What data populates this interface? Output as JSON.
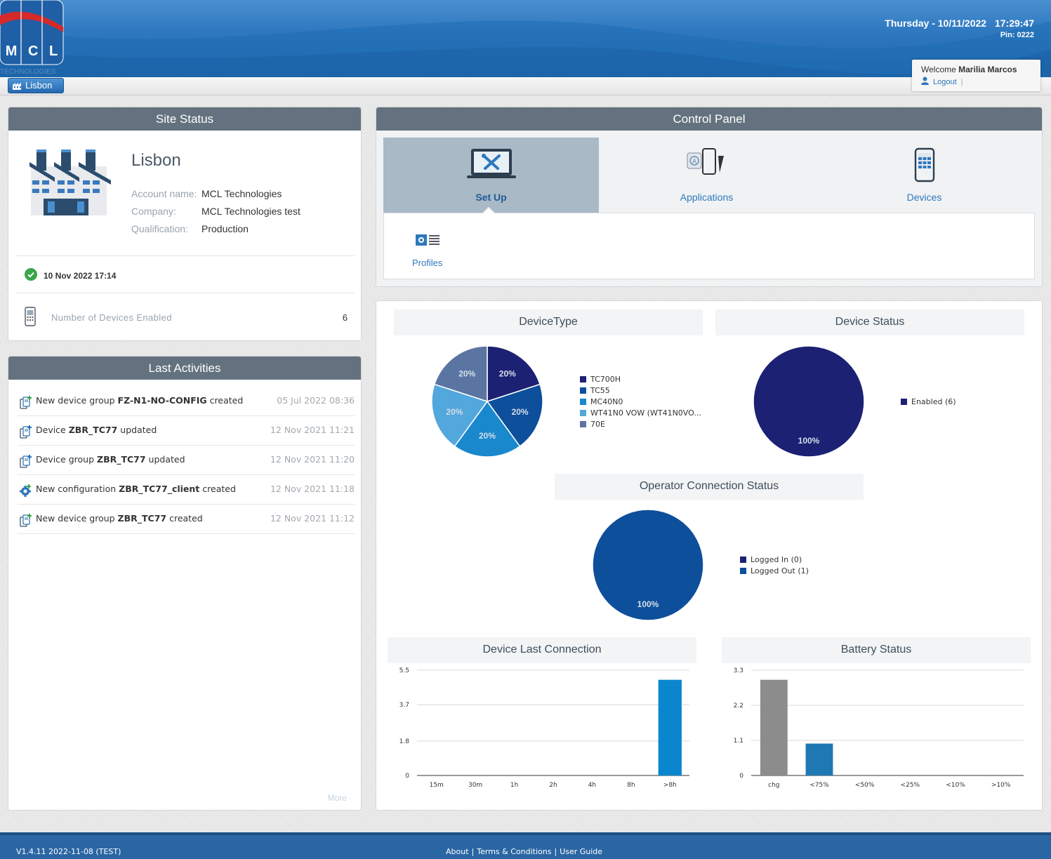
{
  "header": {
    "logo_letters": [
      "M",
      "C",
      "L"
    ],
    "logo_sub": "TECHNOLOGIES",
    "day_date": "Thursday - 10/11/2022",
    "time": "17:29:47",
    "pin": "Pin: 0222",
    "site_button": "Lisbon",
    "welcome_prefix": "Welcome",
    "user_name": "Marilia Marcos",
    "logout": "Logout",
    "logout_sep": "|"
  },
  "site_status": {
    "title": "Site Status",
    "site_name": "Lisbon",
    "fields": [
      {
        "label": "Account name:",
        "value": "MCL Technologies"
      },
      {
        "label": "Company:",
        "value": "MCL Technologies test"
      },
      {
        "label": "Qualification:",
        "value": "Production"
      }
    ],
    "sync_time": "10 Nov 2022 17:14",
    "devices_label": "Number of Devices Enabled",
    "devices_count": "6"
  },
  "activities": {
    "title": "Last Activities",
    "items": [
      {
        "pre": "New device group ",
        "bold": "FZ-N1-NO-CONFIG",
        "post": " created",
        "date": "05 Jul 2022 08:36",
        "icon": "device-group-add-icon"
      },
      {
        "pre": "Device ",
        "bold": "ZBR_TC77",
        "post": " updated",
        "date": "12 Nov 2021 11:21",
        "icon": "device-edit-icon"
      },
      {
        "pre": "Device group ",
        "bold": "ZBR_TC77",
        "post": " updated",
        "date": "12 Nov 2021 11:20",
        "icon": "device-group-edit-icon"
      },
      {
        "pre": "New configuration ",
        "bold": "ZBR_TC77_client",
        "post": " created",
        "date": "12 Nov 2021 11:18",
        "icon": "configuration-add-icon"
      },
      {
        "pre": "New device group ",
        "bold": "ZBR_TC77",
        "post": " created",
        "date": "12 Nov 2021 11:12",
        "icon": "device-group-add-icon"
      }
    ],
    "more": "More"
  },
  "control_panel": {
    "title": "Control Panel",
    "tabs": [
      {
        "label": "Set Up",
        "icon": "laptop-tools-icon"
      },
      {
        "label": "Applications",
        "icon": "applications-icon"
      },
      {
        "label": "Devices",
        "icon": "device-icon"
      }
    ],
    "sub_items": [
      {
        "label": "Profiles",
        "icon": "profiles-icon"
      }
    ]
  },
  "chart_data": [
    {
      "type": "pie",
      "title": "DeviceType",
      "labels": [
        "TC700H",
        "TC55",
        "MC40N0",
        "WT41N0 VOW (WT41N0VO...",
        "70E"
      ],
      "values": [
        20,
        20,
        20,
        20,
        20
      ],
      "data_labels": [
        "20%",
        "20%",
        "20%",
        "20%",
        "20%"
      ],
      "colors": [
        "#1c2173",
        "#0d4f9b",
        "#1a88cc",
        "#52a7dc",
        "#5b75a3"
      ]
    },
    {
      "type": "pie",
      "title": "Device Status",
      "labels": [
        "Enabled (6)"
      ],
      "values": [
        100
      ],
      "data_labels": [
        "100%"
      ],
      "colors": [
        "#1c2173"
      ]
    },
    {
      "type": "pie",
      "title": "Operator Connection Status",
      "labels": [
        "Logged In (0)",
        "Logged Out (1)"
      ],
      "values": [
        0,
        100
      ],
      "data_labels": [
        "100%"
      ],
      "colors": [
        "#1c2173",
        "#0d4f9b"
      ]
    },
    {
      "type": "bar",
      "title": "Device Last Connection",
      "categories": [
        "15m",
        "30m",
        "1h",
        "2h",
        "4h",
        "8h",
        ">8h"
      ],
      "values": [
        0,
        0,
        0,
        0,
        0,
        0,
        5
      ],
      "yticks": [
        "0",
        "1.8",
        "3.7",
        "5.5"
      ],
      "ylim": [
        0,
        5.5
      ],
      "grid": true,
      "colors": [
        "#0a86cf"
      ]
    },
    {
      "type": "bar",
      "title": "Battery Status",
      "categories": [
        "chg",
        "<75%",
        "<50%",
        "<25%",
        "<10%",
        ">10%"
      ],
      "values": [
        3,
        1,
        0,
        0,
        0,
        0
      ],
      "yticks": [
        "0",
        "1.1",
        "2.2",
        "3.3"
      ],
      "ylim": [
        0,
        3.3
      ],
      "grid": true,
      "colors": [
        "#8c8c8c",
        "#1e78b4"
      ]
    }
  ],
  "footer": {
    "version": "V1.4.11 2022-11-08 (TEST)",
    "links": [
      "About",
      "Terms & Conditions",
      "User Guide"
    ],
    "sep": "|"
  }
}
